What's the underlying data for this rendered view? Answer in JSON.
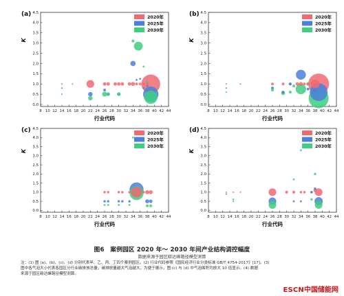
{
  "figure": {
    "title": "图6　案例园区 2020 年～ 2030 年间产业结构调控幅度",
    "source": "数据来源于园区碳达峰路径模型测算",
    "notes": [
      "注：(1) 图 (a)、(b)、(c)、(d) 分别代表甲、乙、丙、丁四个案例园区。(2) 行业代码参照《国民经济行业分类标准 GB/T 4754-2017》[17]。(3)",
      "图中各气泡大小代表各园区分行业碳排放总量，碳排放量越大气泡越大，为便于展示，图 (c) 与 (d) 中气泡面积均放大 10 倍显示。(4) 数据",
      "来源于园区碳达峰路径模型测算。"
    ],
    "watermark": {
      "brand": "ESCN",
      "name": "中国储能网"
    }
  },
  "series_colors": {
    "2020年": "#ef6b72",
    "2025年": "#4a7fdc",
    "2030年": "#3ecf7f"
  },
  "chart_data": [
    {
      "type": "scatter",
      "panel": "(a)",
      "xlabel": "行业代码",
      "ylabel": "K",
      "xlim": [
        8,
        44
      ],
      "ylim": [
        -0.1,
        4.5
      ],
      "xticks": [
        "8",
        "10",
        "12",
        "14",
        "16",
        "18",
        "20",
        "22",
        "24",
        "26",
        "28",
        "30",
        "32",
        "34",
        "36",
        "38",
        "40",
        "42",
        "44"
      ],
      "yticks": [
        "0.0",
        "0.5",
        "1.0",
        "1.5",
        "2.0",
        "2.5",
        "3.0",
        "3.5",
        "4.0",
        "4.5"
      ],
      "legend": [
        "2020年",
        "2025年",
        "2030年"
      ],
      "series": [
        {
          "name": "2020年",
          "points": [
            {
              "x": 14,
              "y": 1.0,
              "s": 1
            },
            {
              "x": 17,
              "y": 1.0,
              "s": 1
            },
            {
              "x": 22,
              "y": 1.0,
              "s": 30
            },
            {
              "x": 26,
              "y": 1.0,
              "s": 6
            },
            {
              "x": 27,
              "y": 1.0,
              "s": 6
            },
            {
              "x": 29,
              "y": 1.0,
              "s": 6
            },
            {
              "x": 30,
              "y": 1.0,
              "s": 6
            },
            {
              "x": 31,
              "y": 1.0,
              "s": 6
            },
            {
              "x": 33,
              "y": 1.0,
              "s": 6
            },
            {
              "x": 34,
              "y": 1.0,
              "s": 8
            },
            {
              "x": 35,
              "y": 1.0,
              "s": 4
            },
            {
              "x": 36,
              "y": 1.0,
              "s": 4
            },
            {
              "x": 37,
              "y": 1.0,
              "s": 4
            },
            {
              "x": 38,
              "y": 1.0,
              "s": 4
            },
            {
              "x": 39,
              "y": 1.0,
              "s": 180
            }
          ]
        },
        {
          "name": "2025年",
          "points": [
            {
              "x": 14,
              "y": 0.8,
              "s": 1
            },
            {
              "x": 22,
              "y": 0.5,
              "s": 10
            },
            {
              "x": 26,
              "y": 0.7,
              "s": 4
            },
            {
              "x": 27,
              "y": 0.5,
              "s": 6
            },
            {
              "x": 30,
              "y": 0.5,
              "s": 6
            },
            {
              "x": 34,
              "y": 2.0,
              "s": 14
            },
            {
              "x": 35,
              "y": 1.2,
              "s": 2
            },
            {
              "x": 36,
              "y": 1.25,
              "s": 2
            },
            {
              "x": 37,
              "y": 0.8,
              "s": 2
            },
            {
              "x": 38,
              "y": 0.9,
              "s": 2
            },
            {
              "x": 39,
              "y": 0.5,
              "s": 120
            }
          ]
        },
        {
          "name": "2030年",
          "points": [
            {
              "x": 14,
              "y": 0.5,
              "s": 1
            },
            {
              "x": 22,
              "y": 0.3,
              "s": 10
            },
            {
              "x": 26,
              "y": 0.5,
              "s": 12
            },
            {
              "x": 27,
              "y": 0.5,
              "s": 6
            },
            {
              "x": 30,
              "y": 0.5,
              "s": 6
            },
            {
              "x": 34,
              "y": 3.1,
              "s": 4
            },
            {
              "x": 35.5,
              "y": 2.85,
              "s": 40
            },
            {
              "x": 37,
              "y": 1.85,
              "s": 2
            },
            {
              "x": 38,
              "y": 1.1,
              "s": 2
            },
            {
              "x": 39,
              "y": 0.35,
              "s": 90
            }
          ]
        }
      ]
    },
    {
      "type": "scatter",
      "panel": "(b)",
      "xlabel": "行业代码",
      "ylabel": "K",
      "xlim": [
        8,
        44
      ],
      "ylim": [
        -0.1,
        4.5
      ],
      "xticks": [
        "8",
        "10",
        "12",
        "14",
        "16",
        "18",
        "20",
        "22",
        "24",
        "26",
        "28",
        "30",
        "32",
        "34",
        "36",
        "38",
        "40",
        "42",
        "44"
      ],
      "yticks": [
        "0.0",
        "0.5",
        "1.0",
        "1.5",
        "2.0",
        "2.5",
        "3.0",
        "3.5",
        "4.0",
        "4.5"
      ],
      "legend": [
        "2020年",
        "2025年",
        "2030年"
      ],
      "series": [
        {
          "name": "2020年",
          "points": [
            {
              "x": 13,
              "y": 1.0,
              "s": 1
            },
            {
              "x": 17,
              "y": 1.0,
              "s": 1
            },
            {
              "x": 26,
              "y": 1.0,
              "s": 4
            },
            {
              "x": 29,
              "y": 1.0,
              "s": 4
            },
            {
              "x": 31,
              "y": 1.0,
              "s": 4
            },
            {
              "x": 33,
              "y": 1.0,
              "s": 6
            },
            {
              "x": 34,
              "y": 1.0,
              "s": 8
            },
            {
              "x": 35,
              "y": 1.0,
              "s": 4
            },
            {
              "x": 36,
              "y": 1.0,
              "s": 4
            },
            {
              "x": 38,
              "y": 1.0,
              "s": 40
            },
            {
              "x": 39,
              "y": 1.0,
              "s": 220
            }
          ]
        },
        {
          "name": "2025年",
          "points": [
            {
              "x": 13,
              "y": 0.8,
              "s": 1
            },
            {
              "x": 26,
              "y": 0.8,
              "s": 4
            },
            {
              "x": 29,
              "y": 0.6,
              "s": 4
            },
            {
              "x": 31,
              "y": 1.0,
              "s": 4
            },
            {
              "x": 34,
              "y": 1.45,
              "s": 50
            },
            {
              "x": 36,
              "y": 0.75,
              "s": 4
            },
            {
              "x": 38,
              "y": 0.7,
              "s": 8
            },
            {
              "x": 39,
              "y": 0.6,
              "s": 160
            }
          ]
        },
        {
          "name": "2030年",
          "points": [
            {
              "x": 13,
              "y": 0.6,
              "s": 1
            },
            {
              "x": 26,
              "y": 0.7,
              "s": 4
            },
            {
              "x": 29,
              "y": 0.55,
              "s": 8
            },
            {
              "x": 31,
              "y": 0.6,
              "s": 4
            },
            {
              "x": 32,
              "y": 0.9,
              "s": 4
            },
            {
              "x": 34,
              "y": 0.75,
              "s": 55
            },
            {
              "x": 36,
              "y": 1.0,
              "s": 6
            },
            {
              "x": 39,
              "y": 0.3,
              "s": 200
            }
          ]
        }
      ]
    },
    {
      "type": "scatter",
      "panel": "(c)",
      "xlabel": "行业代码",
      "ylabel": "K",
      "xlim": [
        8,
        44
      ],
      "ylim": [
        -0.1,
        4.5
      ],
      "xticks": [
        "8",
        "10",
        "12",
        "14",
        "16",
        "18",
        "20",
        "22",
        "24",
        "26",
        "28",
        "30",
        "32",
        "34",
        "36",
        "38",
        "40",
        "42",
        "44"
      ],
      "yticks": [
        "0.0",
        "0.5",
        "1.0",
        "1.5",
        "2.0",
        "2.5",
        "3.0",
        "3.5",
        "4.0",
        "4.5"
      ],
      "legend": [
        "2020年",
        "2025年",
        "2030年"
      ],
      "series": [
        {
          "name": "2020年",
          "points": [
            {
              "x": 26,
              "y": 1.0,
              "s": 3
            },
            {
              "x": 27,
              "y": 1.0,
              "s": 3
            },
            {
              "x": 30,
              "y": 1.0,
              "s": 3
            },
            {
              "x": 31,
              "y": 1.0,
              "s": 3
            },
            {
              "x": 33,
              "y": 1.0,
              "s": 3
            },
            {
              "x": 35,
              "y": 1.0,
              "s": 60
            },
            {
              "x": 37,
              "y": 1.0,
              "s": 3
            },
            {
              "x": 38,
              "y": 1.0,
              "s": 8
            },
            {
              "x": 39,
              "y": 1.0,
              "s": 8
            }
          ]
        },
        {
          "name": "2025年",
          "points": [
            {
              "x": 26,
              "y": 0.5,
              "s": 3
            },
            {
              "x": 27,
              "y": 0.5,
              "s": 3
            },
            {
              "x": 30,
              "y": 0.5,
              "s": 3
            },
            {
              "x": 31,
              "y": 0.5,
              "s": 3
            },
            {
              "x": 33,
              "y": 0.5,
              "s": 3
            },
            {
              "x": 35,
              "y": 1.15,
              "s": 100
            },
            {
              "x": 38,
              "y": 0.5,
              "s": 8
            },
            {
              "x": 39,
              "y": 0.5,
              "s": 6
            }
          ]
        },
        {
          "name": "2030年",
          "points": [
            {
              "x": 26,
              "y": 0.3,
              "s": 2
            },
            {
              "x": 27,
              "y": 0.3,
              "s": 2
            },
            {
              "x": 30,
              "y": 0.3,
              "s": 2
            },
            {
              "x": 33,
              "y": 0.3,
              "s": 2
            },
            {
              "x": 34,
              "y": 4.0,
              "s": 2
            },
            {
              "x": 35,
              "y": 0.95,
              "s": 100
            },
            {
              "x": 38,
              "y": 0.25,
              "s": 4
            },
            {
              "x": 39,
              "y": 0.25,
              "s": 4
            }
          ]
        }
      ]
    },
    {
      "type": "scatter",
      "panel": "(d)",
      "xlabel": "行业代码",
      "ylabel": "K",
      "xlim": [
        8,
        44
      ],
      "ylim": [
        -0.1,
        4.5
      ],
      "xticks": [
        "8",
        "10",
        "12",
        "14",
        "16",
        "18",
        "20",
        "22",
        "24",
        "26",
        "28",
        "30",
        "32",
        "34",
        "36",
        "38",
        "40",
        "42",
        "44"
      ],
      "yticks": [
        "0.0",
        "0.5",
        "1.0",
        "1.5",
        "2.0",
        "2.5",
        "3.0",
        "3.5",
        "4.0",
        "4.5"
      ],
      "legend": [
        "2020年",
        "2025年",
        "2030年"
      ],
      "series": [
        {
          "name": "2020年",
          "points": [
            {
              "x": 13,
              "y": 1.0,
              "s": 1
            },
            {
              "x": 15,
              "y": 1.0,
              "s": 1
            },
            {
              "x": 17,
              "y": 1.0,
              "s": 1
            },
            {
              "x": 26,
              "y": 1.0,
              "s": 30
            },
            {
              "x": 30,
              "y": 1.0,
              "s": 4
            },
            {
              "x": 32,
              "y": 1.0,
              "s": 4
            },
            {
              "x": 34,
              "y": 1.0,
              "s": 3
            },
            {
              "x": 35,
              "y": 1.0,
              "s": 3
            },
            {
              "x": 37,
              "y": 1.0,
              "s": 3
            },
            {
              "x": 38,
              "y": 1.1,
              "s": 6
            },
            {
              "x": 39,
              "y": 1.0,
              "s": 30
            }
          ]
        },
        {
          "name": "2025年",
          "points": [
            {
              "x": 13,
              "y": 0.9,
              "s": 1
            },
            {
              "x": 15,
              "y": 0.6,
              "s": 1
            },
            {
              "x": 26,
              "y": 0.5,
              "s": 30
            },
            {
              "x": 32,
              "y": 0.5,
              "s": 2
            },
            {
              "x": 34,
              "y": 0.5,
              "s": 2
            },
            {
              "x": 37,
              "y": 1.0,
              "s": 3
            },
            {
              "x": 38,
              "y": 1.2,
              "s": 3
            },
            {
              "x": 39,
              "y": 0.5,
              "s": 35
            }
          ]
        },
        {
          "name": "2030年",
          "points": [
            {
              "x": 15,
              "y": 0.5,
              "s": 1
            },
            {
              "x": 26,
              "y": 0.3,
              "s": 30
            },
            {
              "x": 32,
              "y": 1.7,
              "s": 2
            },
            {
              "x": 34,
              "y": 3.3,
              "s": 2
            },
            {
              "x": 35,
              "y": 3.9,
              "s": 2
            },
            {
              "x": 37,
              "y": 0.6,
              "s": 3
            },
            {
              "x": 38,
              "y": 2.0,
              "s": 3
            },
            {
              "x": 39,
              "y": 0.3,
              "s": 30
            }
          ]
        }
      ]
    }
  ]
}
